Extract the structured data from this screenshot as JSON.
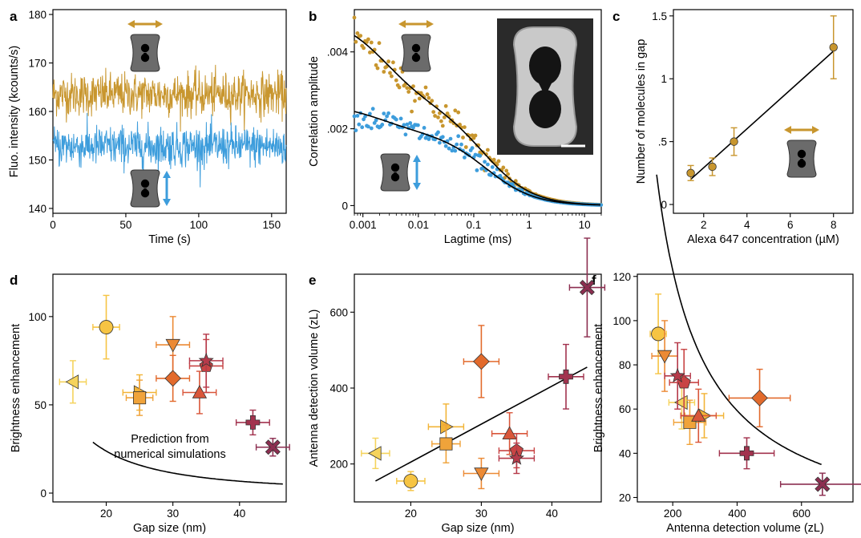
{
  "figure": {
    "panels": [
      {
        "id": "a",
        "label": "a"
      },
      {
        "id": "b",
        "label": "b"
      },
      {
        "id": "c",
        "label": "c"
      },
      {
        "id": "d",
        "label": "d"
      },
      {
        "id": "e",
        "label": "e"
      },
      {
        "id": "f",
        "label": "f"
      }
    ],
    "annotation_d": [
      "Prediction from",
      "numerical simulations"
    ],
    "colors": {
      "gold": "#c8962e",
      "blue": "#3d9ddc",
      "antenna_gray": "#6b6b6b",
      "sem_dark": "#2a2a2a",
      "sem_light": "#c9c9c9"
    }
  },
  "chart_data": [
    {
      "panel": "a",
      "type": "line",
      "xlabel": "Time (s)",
      "ylabel": "Fluo. intensity (kcounts/s)",
      "xlim": [
        0,
        160
      ],
      "ylim": [
        139,
        181
      ],
      "xticks": [
        0,
        50,
        100,
        150
      ],
      "yticks": [
        140,
        150,
        160,
        170,
        180
      ],
      "series": [
        {
          "color": "#c8962e",
          "mean": 163.5,
          "noise": 2.2,
          "x_range": [
            0,
            160
          ]
        },
        {
          "color": "#3d9ddc",
          "mean": 152.8,
          "noise": 2.1,
          "x_range": [
            0,
            160
          ]
        }
      ]
    },
    {
      "panel": "b",
      "type": "scatter",
      "xlabel": "Lagtime (ms)",
      "ylabel": "Correlation amplitude",
      "xscale": "log",
      "xlim": [
        0.0007,
        20
      ],
      "ylim": [
        -0.0002,
        0.0051
      ],
      "xticks": [
        0.001,
        0.01,
        0.1,
        1,
        10
      ],
      "xtick_labels": [
        "0.001",
        "0.01",
        "0.1",
        "1",
        "10"
      ],
      "yticks": [
        0,
        0.002,
        0.004
      ],
      "ytick_labels": [
        "0",
        ".002",
        ".004"
      ],
      "series": [
        {
          "color": "#c8962e",
          "model": {
            "N": [
              0.00235,
              0.0026
            ],
            "tau_ms": [
              0.0025,
              0.16
            ]
          }
        },
        {
          "color": "#3d9ddc",
          "model": {
            "N": [
              0.00075,
              0.0019
            ],
            "tau_ms": [
              0.002,
              0.17
            ]
          }
        }
      ]
    },
    {
      "panel": "c",
      "type": "scatter",
      "xlabel": "Alexa 647 concentration (µM)",
      "ylabel": "Number of molecules in gap",
      "xlim": [
        0.6,
        8.9
      ],
      "ylim": [
        -0.07,
        1.55
      ],
      "xticks": [
        2,
        4,
        6,
        8
      ],
      "yticks": [
        0,
        0.5,
        1,
        1.5
      ],
      "ytick_labels": [
        "0",
        ".5",
        "1",
        "1.5"
      ],
      "points": [
        {
          "x": 1.4,
          "y": 0.25,
          "err": 0.06
        },
        {
          "x": 2.4,
          "y": 0.3,
          "err": 0.07
        },
        {
          "x": 3.4,
          "y": 0.5,
          "err": 0.11
        },
        {
          "x": 8.0,
          "y": 1.25,
          "err": 0.25
        }
      ],
      "fit": {
        "x": [
          1.4,
          8.0
        ],
        "y": [
          0.2,
          1.22
        ]
      }
    },
    {
      "panel": "d",
      "type": "scatter",
      "xlabel": "Gap size (nm)",
      "ylabel": "Brightness enhancement",
      "xlim": [
        12,
        47
      ],
      "ylim": [
        -5,
        124
      ],
      "xticks": [
        20,
        30,
        40
      ],
      "yticks": [
        0,
        50,
        100
      ],
      "points": [
        {
          "x": 15,
          "y": 63,
          "xerr": 2,
          "yerr": 12,
          "marker": "triangle-left",
          "color": "#f5d35c"
        },
        {
          "x": 20,
          "y": 94,
          "xerr": 2,
          "yerr": 18,
          "marker": "circle",
          "color": "#f6c443"
        },
        {
          "x": 25,
          "y": 57,
          "xerr": 2.5,
          "yerr": 10,
          "marker": "triangle-right",
          "color": "#f2b437"
        },
        {
          "x": 25,
          "y": 54,
          "xerr": 2,
          "yerr": 10,
          "marker": "square",
          "color": "#f0a33a"
        },
        {
          "x": 30,
          "y": 84,
          "xerr": 2.5,
          "yerr": 16,
          "marker": "triangle-down",
          "color": "#ec8a35"
        },
        {
          "x": 30,
          "y": 65,
          "xerr": 2.5,
          "yerr": 13,
          "marker": "diamond",
          "color": "#e26a2c"
        },
        {
          "x": 34,
          "y": 57,
          "xerr": 2.5,
          "yerr": 12,
          "marker": "triangle-up",
          "color": "#d9563a"
        },
        {
          "x": 35,
          "y": 72,
          "xerr": 2.5,
          "yerr": 15,
          "marker": "pentagon",
          "color": "#c84444"
        },
        {
          "x": 35,
          "y": 75,
          "xerr": 2.5,
          "yerr": 15,
          "marker": "star",
          "color": "#b63a4a"
        },
        {
          "x": 42,
          "y": 40,
          "xerr": 2.5,
          "yerr": 7,
          "marker": "plus",
          "color": "#a2334e"
        },
        {
          "x": 45,
          "y": 26,
          "xerr": 2.5,
          "yerr": 5,
          "marker": "x",
          "color": "#8c2e50"
        }
      ],
      "model": {
        "A": 5550,
        "n": 1.82,
        "x_range": [
          18,
          46.5
        ]
      }
    },
    {
      "panel": "e",
      "type": "scatter",
      "xlabel": "Gap size (nm)",
      "ylabel": "Antenna detection volume (zL)",
      "xlim": [
        12,
        47
      ],
      "ylim": [
        100,
        700
      ],
      "xticks": [
        20,
        30,
        40
      ],
      "yticks": [
        200,
        400,
        600
      ],
      "points": [
        {
          "x": 15,
          "y": 228,
          "xerr": 2,
          "yerr": 40,
          "marker": "triangle-left",
          "color": "#f5d35c"
        },
        {
          "x": 20,
          "y": 155,
          "xerr": 2,
          "yerr": 25,
          "marker": "circle",
          "color": "#f6c443"
        },
        {
          "x": 25,
          "y": 298,
          "xerr": 2.5,
          "yerr": 60,
          "marker": "triangle-right",
          "color": "#f2b437"
        },
        {
          "x": 25,
          "y": 253,
          "xerr": 2,
          "yerr": 50,
          "marker": "square",
          "color": "#f0a33a"
        },
        {
          "x": 30,
          "y": 175,
          "xerr": 2.5,
          "yerr": 40,
          "marker": "triangle-down",
          "color": "#ec8a35"
        },
        {
          "x": 30,
          "y": 470,
          "xerr": 2.5,
          "yerr": 95,
          "marker": "diamond",
          "color": "#e26a2c"
        },
        {
          "x": 34,
          "y": 280,
          "xerr": 2.5,
          "yerr": 55,
          "marker": "triangle-up",
          "color": "#d9563a"
        },
        {
          "x": 35,
          "y": 235,
          "xerr": 2.5,
          "yerr": 45,
          "marker": "pentagon",
          "color": "#c84444"
        },
        {
          "x": 35,
          "y": 215,
          "xerr": 2.5,
          "yerr": 40,
          "marker": "star",
          "color": "#b63a4a"
        },
        {
          "x": 42,
          "y": 430,
          "xerr": 2.5,
          "yerr": 85,
          "marker": "plus",
          "color": "#a2334e"
        },
        {
          "x": 45,
          "y": 665,
          "xerr": 2.5,
          "yerr": 130,
          "marker": "x",
          "color": "#8c2e50"
        }
      ],
      "fit": {
        "x": [
          15,
          45
        ],
        "y": [
          155,
          455
        ]
      }
    },
    {
      "panel": "f",
      "type": "scatter",
      "xlabel": "Antenna detection volume (zL)",
      "ylabel": "Brightness enhancement",
      "xlim": [
        90,
        760
      ],
      "ylim": [
        18,
        121
      ],
      "xticks": [
        200,
        400,
        600
      ],
      "yticks": [
        20,
        40,
        60,
        80,
        100,
        120
      ],
      "points": [
        {
          "x": 228,
          "y": 63,
          "xerr": 40,
          "yerr": 12,
          "marker": "triangle-left",
          "color": "#f5d35c"
        },
        {
          "x": 155,
          "y": 94,
          "xerr": 25,
          "yerr": 18,
          "marker": "circle",
          "color": "#f6c443"
        },
        {
          "x": 298,
          "y": 57,
          "xerr": 60,
          "yerr": 10,
          "marker": "triangle-right",
          "color": "#f2b437"
        },
        {
          "x": 253,
          "y": 54,
          "xerr": 50,
          "yerr": 10,
          "marker": "square",
          "color": "#f0a33a"
        },
        {
          "x": 175,
          "y": 84,
          "xerr": 40,
          "yerr": 16,
          "marker": "triangle-down",
          "color": "#ec8a35"
        },
        {
          "x": 470,
          "y": 65,
          "xerr": 95,
          "yerr": 13,
          "marker": "diamond",
          "color": "#e26a2c"
        },
        {
          "x": 280,
          "y": 57,
          "xerr": 55,
          "yerr": 12,
          "marker": "triangle-up",
          "color": "#d9563a"
        },
        {
          "x": 235,
          "y": 72,
          "xerr": 45,
          "yerr": 15,
          "marker": "pentagon",
          "color": "#c84444"
        },
        {
          "x": 215,
          "y": 75,
          "xerr": 40,
          "yerr": 15,
          "marker": "star",
          "color": "#b63a4a"
        },
        {
          "x": 430,
          "y": 40,
          "xerr": 85,
          "yerr": 7,
          "marker": "plus",
          "color": "#a2334e"
        },
        {
          "x": 665,
          "y": 26,
          "xerr": 130,
          "yerr": 5,
          "marker": "x",
          "color": "#8c2e50"
        }
      ],
      "model": {
        "A": 32000,
        "n": 1.05,
        "x_range": [
          150,
          665
        ]
      }
    }
  ]
}
